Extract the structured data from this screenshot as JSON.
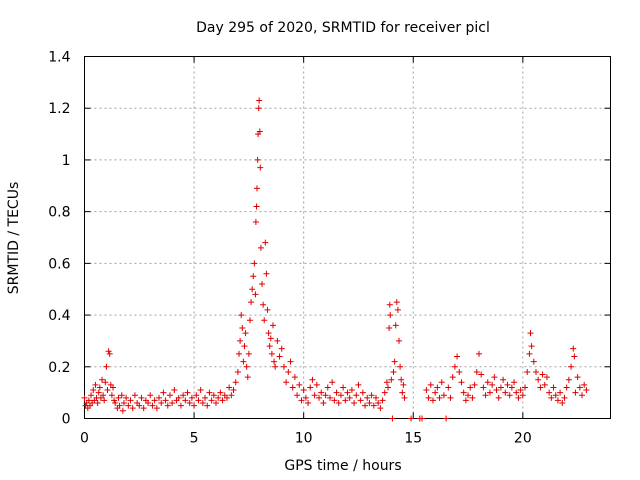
{
  "chart_data": {
    "type": "scatter",
    "title": "Day 295 of 2020, SRMTID for receiver picl",
    "xlabel": "GPS time / hours",
    "ylabel": "SRMTID / TECUs",
    "xlim": [
      0,
      24
    ],
    "ylim": [
      0,
      1.4
    ],
    "x_ticks": [
      0,
      5,
      10,
      15,
      20
    ],
    "x_tick_labels": [
      "0",
      "5",
      "10",
      "15",
      "20"
    ],
    "y_ticks": [
      0,
      0.2,
      0.4,
      0.6,
      0.8,
      1.0,
      1.2,
      1.4
    ],
    "y_tick_labels": [
      "0",
      "0.2",
      "0.4",
      "0.6",
      "0.8",
      "1",
      "1.2",
      "1.4"
    ],
    "grid": true,
    "marker": "plus",
    "color": "#e00000",
    "series": [
      {
        "name": "SRMTID",
        "points": [
          [
            0.0,
            0.08
          ],
          [
            0.05,
            0.05
          ],
          [
            0.1,
            0.06
          ],
          [
            0.15,
            0.04
          ],
          [
            0.2,
            0.07
          ],
          [
            0.25,
            0.05
          ],
          [
            0.3,
            0.09
          ],
          [
            0.35,
            0.06
          ],
          [
            0.4,
            0.11
          ],
          [
            0.45,
            0.07
          ],
          [
            0.5,
            0.13
          ],
          [
            0.55,
            0.08
          ],
          [
            0.6,
            0.06
          ],
          [
            0.65,
            0.1
          ],
          [
            0.7,
            0.12
          ],
          [
            0.75,
            0.08
          ],
          [
            0.8,
            0.15
          ],
          [
            0.85,
            0.09
          ],
          [
            0.9,
            0.07
          ],
          [
            0.95,
            0.14
          ],
          [
            1.0,
            0.2
          ],
          [
            1.05,
            0.11
          ],
          [
            1.1,
            0.26
          ],
          [
            1.15,
            0.25
          ],
          [
            1.2,
            0.13
          ],
          [
            1.25,
            0.09
          ],
          [
            1.3,
            0.12
          ],
          [
            1.35,
            0.07
          ],
          [
            1.4,
            0.06
          ],
          [
            1.5,
            0.04
          ],
          [
            1.55,
            0.08
          ],
          [
            1.6,
            0.05
          ],
          [
            1.7,
            0.09
          ],
          [
            1.75,
            0.03
          ],
          [
            1.8,
            0.06
          ],
          [
            1.9,
            0.08
          ],
          [
            2.0,
            0.05
          ],
          [
            2.1,
            0.07
          ],
          [
            2.2,
            0.04
          ],
          [
            2.3,
            0.09
          ],
          [
            2.4,
            0.06
          ],
          [
            2.5,
            0.05
          ],
          [
            2.6,
            0.08
          ],
          [
            2.7,
            0.04
          ],
          [
            2.8,
            0.07
          ],
          [
            2.9,
            0.06
          ],
          [
            3.0,
            0.09
          ],
          [
            3.1,
            0.05
          ],
          [
            3.2,
            0.07
          ],
          [
            3.3,
            0.04
          ],
          [
            3.4,
            0.08
          ],
          [
            3.5,
            0.06
          ],
          [
            3.6,
            0.1
          ],
          [
            3.7,
            0.07
          ],
          [
            3.8,
            0.05
          ],
          [
            3.9,
            0.09
          ],
          [
            4.0,
            0.06
          ],
          [
            4.1,
            0.11
          ],
          [
            4.2,
            0.07
          ],
          [
            4.3,
            0.08
          ],
          [
            4.4,
            0.05
          ],
          [
            4.5,
            0.09
          ],
          [
            4.6,
            0.07
          ],
          [
            4.7,
            0.1
          ],
          [
            4.8,
            0.06
          ],
          [
            4.9,
            0.08
          ],
          [
            5.0,
            0.05
          ],
          [
            5.1,
            0.09
          ],
          [
            5.2,
            0.07
          ],
          [
            5.3,
            0.11
          ],
          [
            5.4,
            0.06
          ],
          [
            5.5,
            0.08
          ],
          [
            5.6,
            0.05
          ],
          [
            5.7,
            0.1
          ],
          [
            5.8,
            0.07
          ],
          [
            5.9,
            0.09
          ],
          [
            6.0,
            0.06
          ],
          [
            6.1,
            0.08
          ],
          [
            6.2,
            0.1
          ],
          [
            6.3,
            0.07
          ],
          [
            6.4,
            0.09
          ],
          [
            6.5,
            0.08
          ],
          [
            6.6,
            0.12
          ],
          [
            6.7,
            0.09
          ],
          [
            6.8,
            0.11
          ],
          [
            6.9,
            0.14
          ],
          [
            7.0,
            0.18
          ],
          [
            7.05,
            0.25
          ],
          [
            7.1,
            0.3
          ],
          [
            7.15,
            0.4
          ],
          [
            7.2,
            0.35
          ],
          [
            7.25,
            0.22
          ],
          [
            7.3,
            0.28
          ],
          [
            7.35,
            0.33
          ],
          [
            7.4,
            0.2
          ],
          [
            7.45,
            0.16
          ],
          [
            7.5,
            0.25
          ],
          [
            7.55,
            0.38
          ],
          [
            7.6,
            0.45
          ],
          [
            7.65,
            0.5
          ],
          [
            7.7,
            0.55
          ],
          [
            7.75,
            0.6
          ],
          [
            7.8,
            0.48
          ],
          [
            7.82,
            0.76
          ],
          [
            7.85,
            0.82
          ],
          [
            7.87,
            0.89
          ],
          [
            7.9,
            1.0
          ],
          [
            7.92,
            1.1
          ],
          [
            7.95,
            1.2
          ],
          [
            7.97,
            1.23
          ],
          [
            8.0,
            1.11
          ],
          [
            8.02,
            0.97
          ],
          [
            8.05,
            0.66
          ],
          [
            8.1,
            0.52
          ],
          [
            8.15,
            0.44
          ],
          [
            8.2,
            0.38
          ],
          [
            8.25,
            0.68
          ],
          [
            8.3,
            0.56
          ],
          [
            8.35,
            0.42
          ],
          [
            8.4,
            0.33
          ],
          [
            8.45,
            0.28
          ],
          [
            8.5,
            0.31
          ],
          [
            8.55,
            0.25
          ],
          [
            8.6,
            0.36
          ],
          [
            8.65,
            0.22
          ],
          [
            8.7,
            0.2
          ],
          [
            8.8,
            0.3
          ],
          [
            8.9,
            0.24
          ],
          [
            9.0,
            0.27
          ],
          [
            9.1,
            0.2
          ],
          [
            9.2,
            0.14
          ],
          [
            9.3,
            0.18
          ],
          [
            9.4,
            0.22
          ],
          [
            9.5,
            0.12
          ],
          [
            9.6,
            0.16
          ],
          [
            9.7,
            0.09
          ],
          [
            9.8,
            0.13
          ],
          [
            9.9,
            0.07
          ],
          [
            10.0,
            0.11
          ],
          [
            10.1,
            0.08
          ],
          [
            10.2,
            0.06
          ],
          [
            10.3,
            0.12
          ],
          [
            10.4,
            0.15
          ],
          [
            10.5,
            0.09
          ],
          [
            10.6,
            0.13
          ],
          [
            10.7,
            0.08
          ],
          [
            10.8,
            0.1
          ],
          [
            10.9,
            0.06
          ],
          [
            11.0,
            0.09
          ],
          [
            11.1,
            0.12
          ],
          [
            11.2,
            0.08
          ],
          [
            11.3,
            0.14
          ],
          [
            11.4,
            0.07
          ],
          [
            11.5,
            0.1
          ],
          [
            11.6,
            0.06
          ],
          [
            11.7,
            0.09
          ],
          [
            11.8,
            0.12
          ],
          [
            11.9,
            0.07
          ],
          [
            12.0,
            0.1
          ],
          [
            12.1,
            0.08
          ],
          [
            12.2,
            0.11
          ],
          [
            12.3,
            0.06
          ],
          [
            12.4,
            0.09
          ],
          [
            12.5,
            0.13
          ],
          [
            12.6,
            0.07
          ],
          [
            12.7,
            0.1
          ],
          [
            12.8,
            0.05
          ],
          [
            12.9,
            0.08
          ],
          [
            13.0,
            0.06
          ],
          [
            13.1,
            0.09
          ],
          [
            13.2,
            0.05
          ],
          [
            13.3,
            0.08
          ],
          [
            13.4,
            0.06
          ],
          [
            13.5,
            0.04
          ],
          [
            13.6,
            0.07
          ],
          [
            13.7,
            0.1
          ],
          [
            13.8,
            0.14
          ],
          [
            13.85,
            0.12
          ],
          [
            13.9,
            0.35
          ],
          [
            13.93,
            0.44
          ],
          [
            13.95,
            0.4
          ],
          [
            14.0,
            0.15
          ],
          [
            14.05,
            0.0
          ],
          [
            14.1,
            0.18
          ],
          [
            14.15,
            0.22
          ],
          [
            14.2,
            0.36
          ],
          [
            14.25,
            0.45
          ],
          [
            14.3,
            0.42
          ],
          [
            14.35,
            0.3
          ],
          [
            14.4,
            0.2
          ],
          [
            14.45,
            0.15
          ],
          [
            14.5,
            0.1
          ],
          [
            14.55,
            0.13
          ],
          [
            14.6,
            0.08
          ],
          [
            14.9,
            0.0
          ],
          [
            15.3,
            0.0
          ],
          [
            15.4,
            0.0
          ],
          [
            15.6,
            0.11
          ],
          [
            15.7,
            0.08
          ],
          [
            15.8,
            0.13
          ],
          [
            15.9,
            0.07
          ],
          [
            16.0,
            0.1
          ],
          [
            16.1,
            0.12
          ],
          [
            16.2,
            0.08
          ],
          [
            16.3,
            0.14
          ],
          [
            16.4,
            0.09
          ],
          [
            16.5,
            0.0
          ],
          [
            16.6,
            0.12
          ],
          [
            16.7,
            0.08
          ],
          [
            16.8,
            0.16
          ],
          [
            16.9,
            0.2
          ],
          [
            17.0,
            0.24
          ],
          [
            17.1,
            0.18
          ],
          [
            17.2,
            0.14
          ],
          [
            17.3,
            0.1
          ],
          [
            17.4,
            0.07
          ],
          [
            17.5,
            0.09
          ],
          [
            17.6,
            0.12
          ],
          [
            17.7,
            0.08
          ],
          [
            17.8,
            0.13
          ],
          [
            17.9,
            0.18
          ],
          [
            18.0,
            0.25
          ],
          [
            18.1,
            0.17
          ],
          [
            18.2,
            0.12
          ],
          [
            18.3,
            0.09
          ],
          [
            18.4,
            0.14
          ],
          [
            18.5,
            0.1
          ],
          [
            18.6,
            0.13
          ],
          [
            18.7,
            0.16
          ],
          [
            18.8,
            0.11
          ],
          [
            18.9,
            0.08
          ],
          [
            19.0,
            0.12
          ],
          [
            19.1,
            0.15
          ],
          [
            19.2,
            0.1
          ],
          [
            19.3,
            0.13
          ],
          [
            19.4,
            0.09
          ],
          [
            19.5,
            0.12
          ],
          [
            19.6,
            0.14
          ],
          [
            19.7,
            0.1
          ],
          [
            19.8,
            0.08
          ],
          [
            19.9,
            0.11
          ],
          [
            20.0,
            0.09
          ],
          [
            20.1,
            0.12
          ],
          [
            20.2,
            0.18
          ],
          [
            20.3,
            0.25
          ],
          [
            20.35,
            0.33
          ],
          [
            20.4,
            0.28
          ],
          [
            20.5,
            0.22
          ],
          [
            20.6,
            0.18
          ],
          [
            20.7,
            0.15
          ],
          [
            20.8,
            0.12
          ],
          [
            20.9,
            0.17
          ],
          [
            21.0,
            0.13
          ],
          [
            21.1,
            0.16
          ],
          [
            21.2,
            0.1
          ],
          [
            21.3,
            0.08
          ],
          [
            21.4,
            0.12
          ],
          [
            21.5,
            0.09
          ],
          [
            21.6,
            0.07
          ],
          [
            21.7,
            0.1
          ],
          [
            21.8,
            0.06
          ],
          [
            21.9,
            0.08
          ],
          [
            22.0,
            0.12
          ],
          [
            22.1,
            0.15
          ],
          [
            22.2,
            0.2
          ],
          [
            22.3,
            0.27
          ],
          [
            22.35,
            0.24
          ],
          [
            22.4,
            0.1
          ],
          [
            22.5,
            0.16
          ],
          [
            22.6,
            0.12
          ],
          [
            22.7,
            0.09
          ],
          [
            22.8,
            0.13
          ],
          [
            22.9,
            0.11
          ]
        ]
      }
    ]
  }
}
